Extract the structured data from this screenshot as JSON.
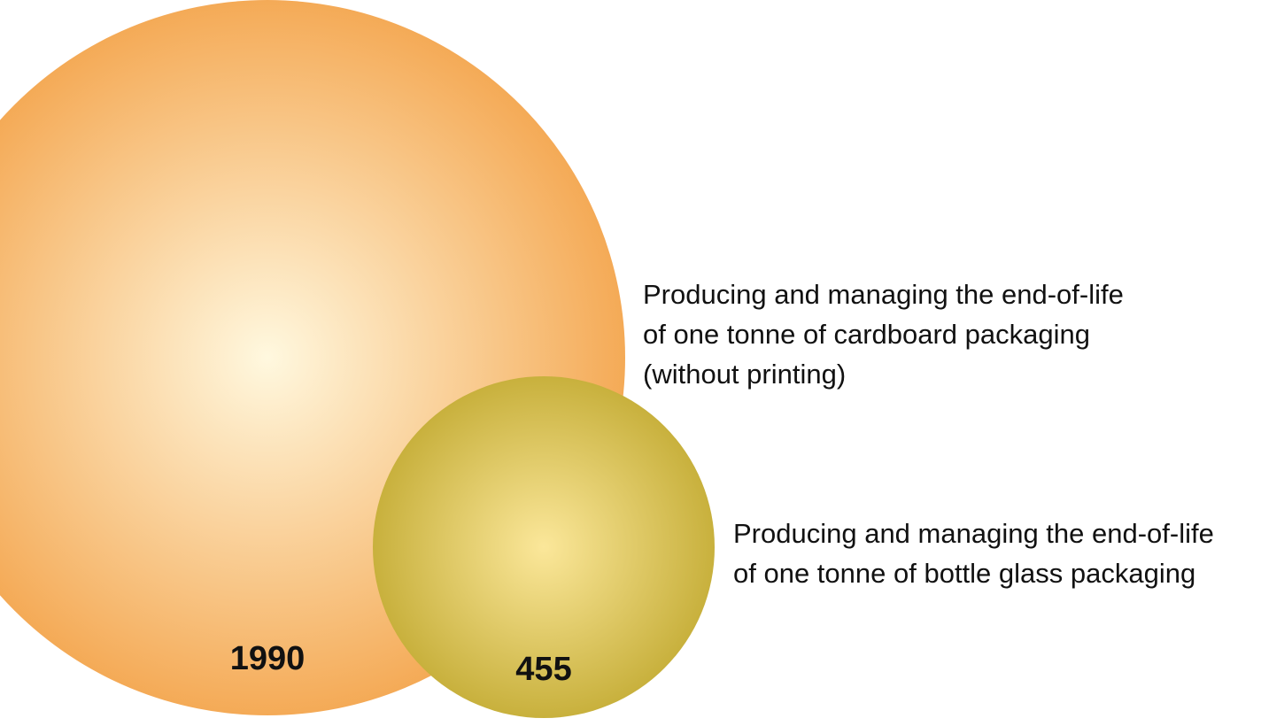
{
  "chart_data": {
    "type": "bubble",
    "series": [
      {
        "value": 1990,
        "value_label": "1990",
        "caption_lines": [
          "Producing and managing the end-of-life",
          "of one tonne of cardboard packaging",
          "(without printing)"
        ],
        "color_center": "#fff8df",
        "color_edge": "#f08a1e"
      },
      {
        "value": 455,
        "value_label": "455",
        "caption_lines": [
          "Producing and managing the end-of-life",
          "of one tonne of bottle glass packaging"
        ],
        "color_center": "#fbe79a",
        "color_edge": "#b39a16"
      }
    ]
  }
}
